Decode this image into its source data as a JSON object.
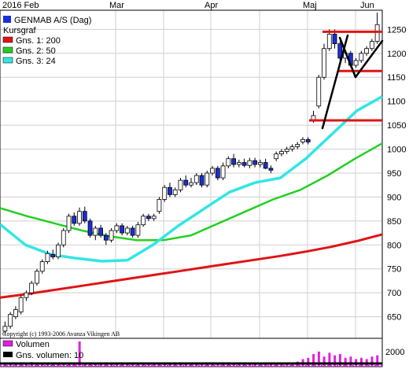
{
  "chart_data": {
    "type": "candlestick",
    "x_tick_labels": [
      "2016 Feb",
      "Mar",
      "Apr",
      "Maj",
      "Jun"
    ],
    "y_tick_labels": [
      650,
      700,
      750,
      800,
      850,
      900,
      950,
      1000,
      1050,
      1100,
      1150,
      1200,
      1250
    ],
    "ylim": [
      605,
      1290
    ],
    "volume_tick_label": "2000",
    "copyright": "Copyright (c) 1993-2006 Avanza Vikingen AB",
    "legend": [
      {
        "label": "GENMAB A/S (Dag)",
        "color": "#1a2fd6"
      },
      {
        "label": "Kursgraf",
        "color": ""
      },
      {
        "label": "Gns. 1: 200",
        "color": "#e01414"
      },
      {
        "label": "Gns. 2: 50",
        "color": "#22d022"
      },
      {
        "label": "Gns. 3: 24",
        "color": "#33e5e5"
      }
    ],
    "volume_legend": [
      {
        "label": "Volumen",
        "color": "#e020e0"
      },
      {
        "label": "Gns. volumen: 10",
        "color": "#000000"
      }
    ],
    "candles": [
      [
        620,
        630,
        612,
        640
      ],
      [
        630,
        655,
        625,
        660
      ],
      [
        650,
        665,
        645,
        672
      ],
      [
        660,
        690,
        655,
        695
      ],
      [
        690,
        700,
        683,
        705
      ],
      [
        700,
        720,
        695,
        725
      ],
      [
        720,
        745,
        715,
        750
      ],
      [
        745,
        765,
        740,
        770
      ],
      [
        765,
        782,
        760,
        788
      ],
      [
        780,
        775,
        770,
        790
      ],
      [
        775,
        800,
        770,
        805
      ],
      [
        800,
        830,
        795,
        835
      ],
      [
        830,
        860,
        825,
        865
      ],
      [
        860,
        845,
        840,
        868
      ],
      [
        845,
        870,
        840,
        878
      ],
      [
        870,
        850,
        845,
        880
      ],
      [
        850,
        820,
        815,
        855
      ],
      [
        820,
        835,
        810,
        840
      ],
      [
        835,
        820,
        815,
        842
      ],
      [
        820,
        810,
        800,
        825
      ],
      [
        810,
        830,
        805,
        835
      ],
      [
        830,
        840,
        825,
        845
      ],
      [
        840,
        825,
        820,
        845
      ],
      [
        825,
        835,
        820,
        840
      ],
      [
        835,
        820,
        815,
        840
      ],
      [
        820,
        842,
        815,
        848
      ],
      [
        842,
        860,
        838,
        865
      ],
      [
        860,
        855,
        850,
        865
      ],
      [
        855,
        860,
        850,
        865
      ],
      [
        870,
        895,
        865,
        900
      ],
      [
        895,
        920,
        890,
        925
      ],
      [
        920,
        905,
        900,
        930
      ],
      [
        905,
        915,
        900,
        920
      ],
      [
        915,
        935,
        910,
        940
      ],
      [
        935,
        925,
        920,
        945
      ],
      [
        925,
        930,
        920,
        940
      ],
      [
        930,
        945,
        925,
        950
      ],
      [
        945,
        925,
        920,
        950
      ],
      [
        925,
        950,
        920,
        955
      ],
      [
        950,
        960,
        945,
        965
      ],
      [
        960,
        940,
        935,
        965
      ],
      [
        940,
        965,
        935,
        972
      ],
      [
        965,
        980,
        960,
        985
      ],
      [
        980,
        968,
        962,
        990
      ],
      [
        968,
        972,
        962,
        978
      ],
      [
        972,
        966,
        962,
        980
      ],
      [
        966,
        976,
        960,
        982
      ],
      [
        976,
        968,
        962,
        982
      ],
      [
        968,
        972,
        962,
        978
      ],
      [
        972,
        960,
        958,
        980
      ],
      [
        960,
        956,
        950,
        966
      ],
      [
        980,
        990,
        975,
        995
      ],
      [
        990,
        995,
        985,
        1000
      ],
      [
        995,
        1000,
        990,
        1005
      ],
      [
        1000,
        1005,
        995,
        1010
      ],
      [
        1005,
        1010,
        1000,
        1015
      ],
      [
        1015,
        1020,
        1010,
        1025
      ],
      [
        1020,
        1015,
        1010,
        1025
      ],
      [
        1060,
        1070,
        1055,
        1080
      ],
      [
        1090,
        1150,
        1085,
        1155
      ],
      [
        1150,
        1210,
        1145,
        1220
      ],
      [
        1210,
        1240,
        1205,
        1250
      ],
      [
        1240,
        1220,
        1210,
        1250
      ],
      [
        1220,
        1190,
        1180,
        1225
      ],
      [
        1190,
        1200,
        1180,
        1205
      ],
      [
        1200,
        1175,
        1170,
        1205
      ],
      [
        1175,
        1185,
        1170,
        1190
      ],
      [
        1185,
        1200,
        1180,
        1205
      ],
      [
        1200,
        1210,
        1195,
        1215
      ],
      [
        1210,
        1225,
        1205,
        1230
      ],
      [
        1225,
        1260,
        1220,
        1285
      ]
    ],
    "moving_averages": [
      {
        "label": "Gns. 1: 200",
        "values": [
          690,
          697,
          705,
          713,
          721,
          729,
          737,
          745,
          753,
          761,
          769,
          777,
          786,
          796,
          808,
          822
        ]
      },
      {
        "label": "Gns. 2: 50",
        "values": [
          877,
          860,
          845,
          830,
          818,
          810,
          810,
          820,
          845,
          870,
          895,
          915,
          945,
          980,
          1012
        ]
      },
      {
        "label": "Gns. 3: 24",
        "values": [
          843,
          800,
          780,
          772,
          766,
          768,
          800,
          840,
          875,
          910,
          930,
          940,
          980,
          1030,
          1080,
          1110
        ]
      }
    ],
    "horizontal_lines": [
      1245,
      1163,
      1060
    ],
    "volume_values": [
      0.12,
      0.1,
      0.15,
      0.12,
      0.1,
      0.18,
      0.12,
      0.1,
      0.14,
      0.1,
      0.12,
      0.1,
      0.15,
      0.12,
      1.0,
      0.1,
      0.14,
      0.12,
      0.1,
      0.15,
      0.12,
      0.1,
      0.12,
      0.1,
      0.12,
      0.15,
      0.12,
      0.1,
      0.12,
      0.14,
      0.1,
      0.12,
      0.1,
      0.15,
      0.12,
      0.1,
      0.14,
      0.12,
      0.1,
      0.12,
      0.1,
      0.14,
      0.12,
      0.1,
      0.12,
      0.1,
      0.14,
      0.12,
      0.1,
      0.12,
      0.14,
      0.12,
      0.1,
      0.15,
      0.12,
      0.2,
      0.3,
      0.35,
      0.5,
      0.6,
      0.4,
      0.55,
      0.45,
      0.5,
      0.35,
      0.4,
      0.3,
      0.35,
      0.3,
      0.4,
      0.45
    ]
  }
}
